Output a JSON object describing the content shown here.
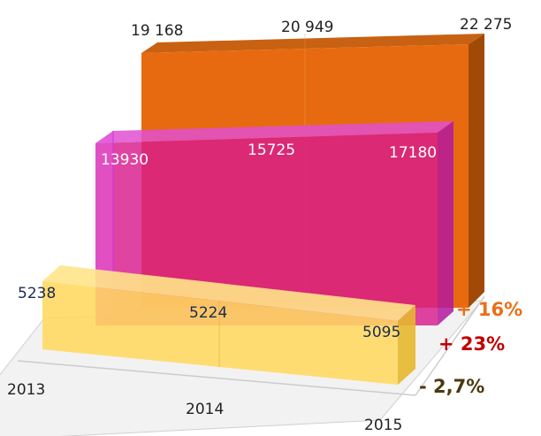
{
  "chart_data": {
    "type": "area",
    "categories": [
      "2013",
      "2014",
      "2015"
    ],
    "series": [
      {
        "values": [
          19168,
          20949,
          22275
        ],
        "value_labels": [
          "19 168",
          "20 949",
          "22 275"
        ],
        "color": "#E86A10",
        "change_label": "+ 16%",
        "change_color": "#E8701A",
        "label_color": "#222222"
      },
      {
        "values": [
          13930,
          15725,
          17180
        ],
        "value_labels": [
          "13930",
          "15725",
          "17180"
        ],
        "color": "#D62E8A",
        "edge_color": "#CC33DD",
        "change_label": "+ 23%",
        "change_color": "#C00000",
        "label_color": "#ffffff"
      },
      {
        "values": [
          5238,
          5224,
          5095
        ],
        "value_labels": [
          "5238",
          "5224",
          "5095"
        ],
        "color": "#FFD860",
        "change_label": "- 2,7%",
        "change_color": "#4A3A10",
        "label_color": "#1a2a55"
      }
    ],
    "grid": false,
    "legend": "none"
  }
}
